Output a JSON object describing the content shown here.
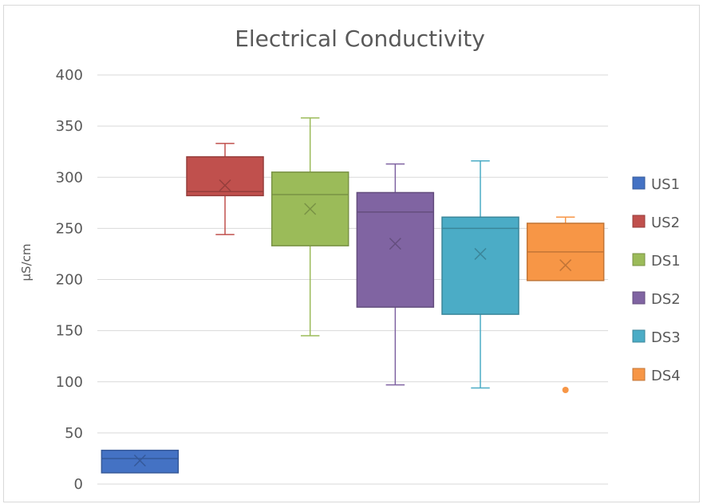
{
  "chart_data": {
    "type": "box",
    "title": "Electrical Conductivity",
    "ylabel": "µS/cm",
    "ylim": [
      0,
      400
    ],
    "yticks": [
      0,
      50,
      100,
      150,
      200,
      250,
      300,
      350,
      400
    ],
    "grid": true,
    "legend_position": "right",
    "series": [
      {
        "name": "US1",
        "color": "#4472C4",
        "min": 11,
        "q1": 11,
        "median": 25,
        "q3": 33,
        "max": 33,
        "mean": 23,
        "outliers": []
      },
      {
        "name": "US2",
        "color": "#C0504D",
        "min": 244,
        "q1": 282,
        "median": 286,
        "q3": 320,
        "max": 333,
        "mean": 292,
        "outliers": []
      },
      {
        "name": "DS1",
        "color": "#9BBB59",
        "min": 145,
        "q1": 233,
        "median": 283,
        "q3": 305,
        "max": 358,
        "mean": 269,
        "outliers": []
      },
      {
        "name": "DS2",
        "color": "#8064A2",
        "min": 97,
        "q1": 173,
        "median": 266,
        "q3": 285,
        "max": 313,
        "mean": 235,
        "outliers": []
      },
      {
        "name": "DS3",
        "color": "#4BACC6",
        "min": 94,
        "q1": 166,
        "median": 250,
        "q3": 261,
        "max": 316,
        "mean": 225,
        "outliers": []
      },
      {
        "name": "DS4",
        "color": "#F79646",
        "min": 199,
        "q1": 199,
        "median": 227,
        "q3": 255,
        "max": 261,
        "mean": 214,
        "outliers": [
          92
        ]
      }
    ]
  }
}
